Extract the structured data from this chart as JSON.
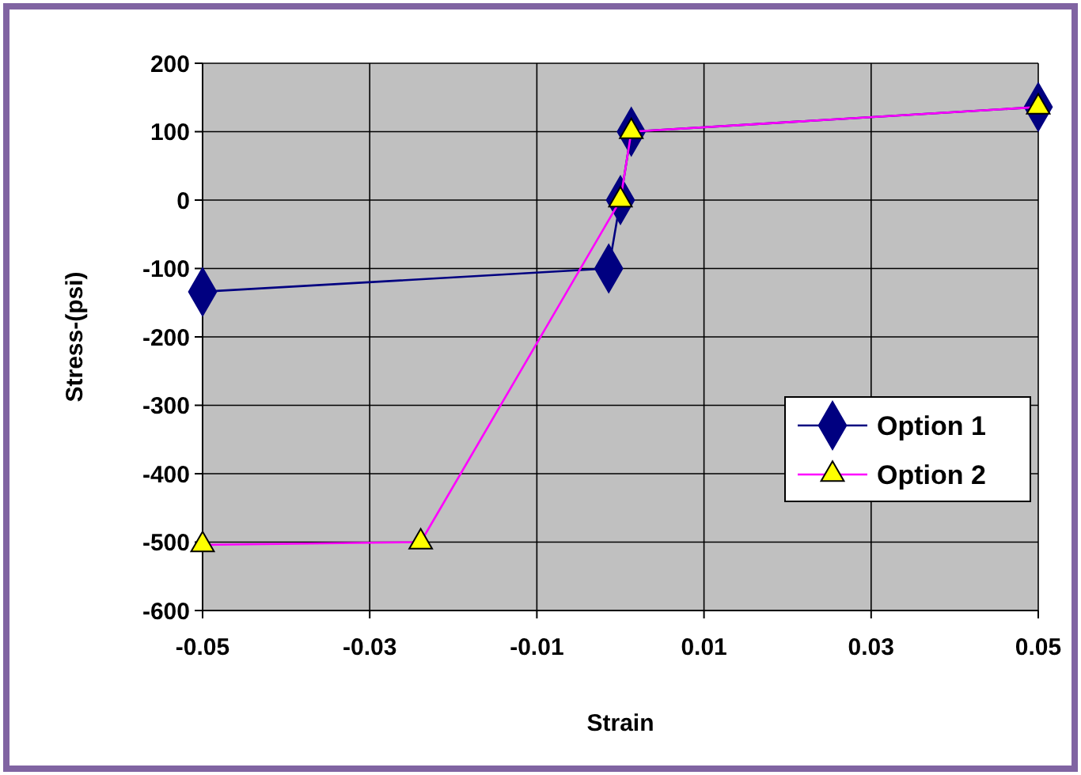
{
  "chart_data": {
    "type": "line",
    "xlabel": "Strain",
    "ylabel": "Stress-(psi)",
    "xlim": [
      -0.05,
      0.05
    ],
    "xticks": [
      -0.05,
      -0.03,
      -0.01,
      0.01,
      0.03,
      0.05
    ],
    "ylim": [
      -600,
      200
    ],
    "yticks": [
      -600,
      -500,
      -400,
      -300,
      -200,
      -100,
      0,
      100,
      200
    ],
    "grid": true,
    "legend": "right",
    "series": [
      {
        "name": "Option 1",
        "color": "#000080",
        "marker": "diamond",
        "x": [
          -0.05,
          -0.0014,
          0.0,
          0.0013,
          0.05
        ],
        "values": [
          -134,
          -100,
          0,
          100,
          136
        ]
      },
      {
        "name": "Option 2",
        "color": "#ff00ff",
        "marker": "triangle",
        "x": [
          -0.05,
          -0.0239,
          0.0,
          0.0013,
          0.05
        ],
        "values": [
          -504,
          -500,
          0,
          100,
          136
        ]
      }
    ]
  }
}
